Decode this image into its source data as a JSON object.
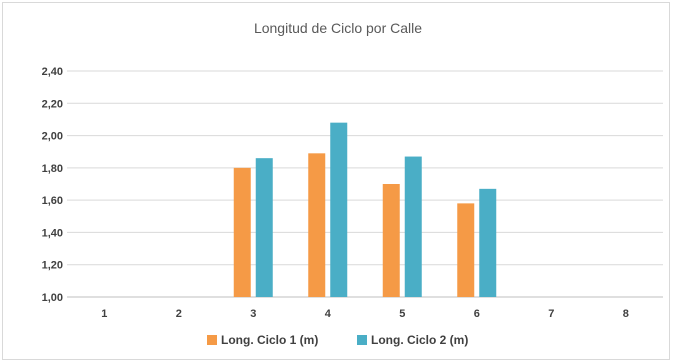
{
  "chart_data": {
    "type": "bar",
    "title": "Longitud de Ciclo por Calle",
    "xlabel": "",
    "ylabel": "",
    "categories": [
      "1",
      "2",
      "3",
      "4",
      "5",
      "6",
      "7",
      "8"
    ],
    "ylim": [
      1.0,
      2.4
    ],
    "yticks": [
      "1,00",
      "1,20",
      "1,40",
      "1,60",
      "1,80",
      "2,00",
      "2,20",
      "2,40"
    ],
    "ytick_values": [
      1.0,
      1.2,
      1.4,
      1.6,
      1.8,
      2.0,
      2.2,
      2.4
    ],
    "grid": true,
    "legend_position": "bottom",
    "series": [
      {
        "name": "Long. Ciclo 1 (m)",
        "color": "#f59a46",
        "values": [
          null,
          null,
          1.8,
          1.89,
          1.7,
          1.58,
          null,
          null
        ]
      },
      {
        "name": "Long. Ciclo 2 (m)",
        "color": "#4aaec6",
        "values": [
          null,
          null,
          1.86,
          2.08,
          1.87,
          1.67,
          null,
          null
        ]
      }
    ]
  }
}
